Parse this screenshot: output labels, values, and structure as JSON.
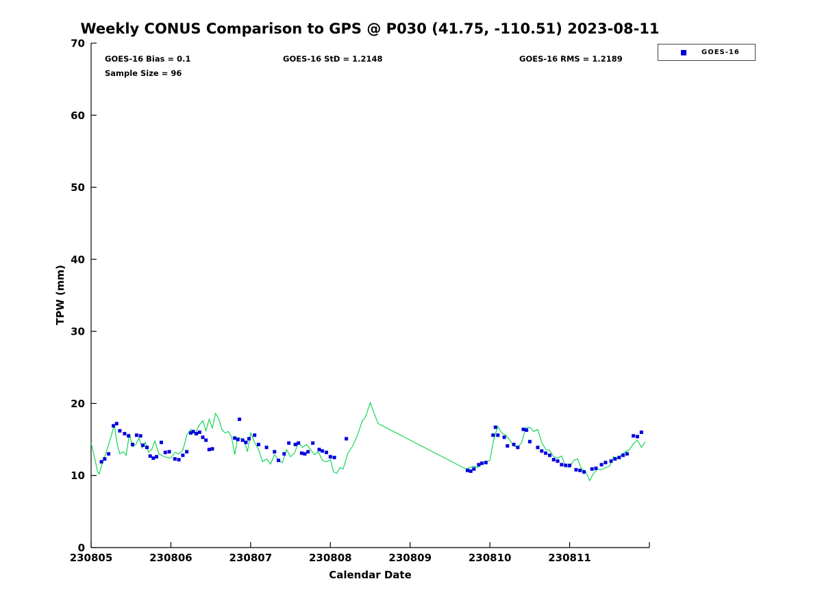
{
  "title": "Weekly CONUS Comparison to GPS @ P030 (41.75, -110.51) 2023-08-11",
  "stats": {
    "bias": "GOES-16 Bias = 0.1",
    "std": "GOES-16 StD = 1.2148",
    "rms": "GOES-16 RMS = 1.2189",
    "sample_size": "Sample Size = 96"
  },
  "legend": {
    "entries": [
      {
        "label": "GOES-16",
        "marker": "square",
        "color": "#0000dd"
      }
    ],
    "position": "top-right"
  },
  "chart_data": {
    "type": "line+scatter",
    "title": "Weekly CONUS Comparison to GPS @ P030 (41.75, -110.51) 2023-08-11",
    "xlabel": "Calendar Date",
    "ylabel": "TPW (mm)",
    "ylim": [
      0,
      70
    ],
    "yticks": [
      0,
      10,
      20,
      30,
      40,
      50,
      60,
      70
    ],
    "xlim_days": [
      0,
      7
    ],
    "xticks_days": [
      0,
      1,
      2,
      3,
      4,
      5,
      6
    ],
    "xtick_labels": [
      "230805",
      "230806",
      "230807",
      "230808",
      "230809",
      "230810",
      "230811"
    ],
    "grid": false,
    "axis_color": "#000000",
    "series": [
      {
        "name": "GPS",
        "type": "line",
        "color": "#00d24b",
        "points": [
          [
            0.0,
            14.5
          ],
          [
            0.04,
            12.6
          ],
          [
            0.08,
            10.6
          ],
          [
            0.1,
            10.2
          ],
          [
            0.15,
            12.0
          ],
          [
            0.2,
            13.6
          ],
          [
            0.25,
            15.4
          ],
          [
            0.29,
            17.0
          ],
          [
            0.33,
            14.2
          ],
          [
            0.36,
            13.0
          ],
          [
            0.4,
            13.3
          ],
          [
            0.44,
            12.8
          ],
          [
            0.48,
            15.8
          ],
          [
            0.52,
            14.0
          ],
          [
            0.56,
            14.3
          ],
          [
            0.6,
            15.2
          ],
          [
            0.64,
            13.8
          ],
          [
            0.68,
            14.6
          ],
          [
            0.72,
            13.2
          ],
          [
            0.76,
            13.6
          ],
          [
            0.8,
            14.8
          ],
          [
            0.85,
            13.0
          ],
          [
            0.9,
            12.7
          ],
          [
            0.95,
            12.5
          ],
          [
            1.0,
            12.4
          ],
          [
            1.05,
            13.2
          ],
          [
            1.1,
            13.0
          ],
          [
            1.15,
            13.5
          ],
          [
            1.2,
            15.6
          ],
          [
            1.25,
            16.4
          ],
          [
            1.3,
            15.7
          ],
          [
            1.35,
            16.9
          ],
          [
            1.4,
            17.6
          ],
          [
            1.44,
            16.2
          ],
          [
            1.48,
            17.8
          ],
          [
            1.52,
            16.6
          ],
          [
            1.56,
            18.6
          ],
          [
            1.6,
            17.9
          ],
          [
            1.64,
            16.4
          ],
          [
            1.68,
            15.9
          ],
          [
            1.72,
            16.1
          ],
          [
            1.76,
            15.4
          ],
          [
            1.8,
            12.9
          ],
          [
            1.84,
            15.3
          ],
          [
            1.88,
            15.1
          ],
          [
            1.92,
            14.9
          ],
          [
            1.96,
            13.3
          ],
          [
            2.0,
            15.9
          ],
          [
            2.05,
            14.6
          ],
          [
            2.1,
            13.6
          ],
          [
            2.15,
            11.9
          ],
          [
            2.2,
            12.3
          ],
          [
            2.25,
            11.6
          ],
          [
            2.3,
            12.9
          ],
          [
            2.35,
            12.1
          ],
          [
            2.4,
            11.8
          ],
          [
            2.45,
            13.6
          ],
          [
            2.5,
            12.6
          ],
          [
            2.55,
            13.1
          ],
          [
            2.6,
            14.6
          ],
          [
            2.65,
            13.9
          ],
          [
            2.7,
            14.3
          ],
          [
            2.75,
            13.6
          ],
          [
            2.8,
            12.9
          ],
          [
            2.85,
            13.3
          ],
          [
            2.9,
            12.1
          ],
          [
            2.95,
            11.9
          ],
          [
            3.0,
            12.2
          ],
          [
            3.04,
            10.5
          ],
          [
            3.08,
            10.3
          ],
          [
            3.12,
            11.1
          ],
          [
            3.16,
            10.9
          ],
          [
            3.22,
            13.1
          ],
          [
            3.28,
            14.1
          ],
          [
            3.34,
            15.6
          ],
          [
            3.4,
            17.6
          ],
          [
            3.44,
            18.1
          ],
          [
            3.5,
            20.1
          ],
          [
            3.55,
            18.6
          ],
          [
            3.6,
            17.2
          ],
          [
            4.7,
            10.9
          ],
          [
            4.75,
            11.1
          ],
          [
            4.8,
            11.3
          ],
          [
            4.85,
            11.1
          ],
          [
            4.9,
            11.6
          ],
          [
            4.95,
            11.9
          ],
          [
            5.0,
            12.1
          ],
          [
            5.05,
            15.1
          ],
          [
            5.1,
            16.8
          ],
          [
            5.15,
            15.9
          ],
          [
            5.2,
            15.6
          ],
          [
            5.25,
            14.9
          ],
          [
            5.3,
            14.1
          ],
          [
            5.35,
            13.9
          ],
          [
            5.4,
            14.6
          ],
          [
            5.45,
            16.6
          ],
          [
            5.5,
            16.7
          ],
          [
            5.55,
            16.1
          ],
          [
            5.6,
            16.4
          ],
          [
            5.65,
            14.6
          ],
          [
            5.7,
            13.6
          ],
          [
            5.75,
            13.5
          ],
          [
            5.8,
            12.6
          ],
          [
            5.85,
            12.4
          ],
          [
            5.9,
            12.7
          ],
          [
            5.95,
            11.3
          ],
          [
            6.0,
            11.1
          ],
          [
            6.05,
            12.1
          ],
          [
            6.1,
            12.3
          ],
          [
            6.15,
            10.9
          ],
          [
            6.2,
            10.6
          ],
          [
            6.25,
            9.3
          ],
          [
            6.3,
            10.3
          ],
          [
            6.35,
            10.9
          ],
          [
            6.4,
            10.8
          ],
          [
            6.45,
            11.1
          ],
          [
            6.5,
            11.3
          ],
          [
            6.55,
            12.6
          ],
          [
            6.6,
            12.4
          ],
          [
            6.65,
            12.9
          ],
          [
            6.7,
            13.3
          ],
          [
            6.75,
            13.6
          ],
          [
            6.8,
            14.4
          ],
          [
            6.85,
            14.9
          ],
          [
            6.9,
            13.9
          ],
          [
            6.95,
            14.7
          ]
        ]
      },
      {
        "name": "GOES-16",
        "type": "scatter",
        "marker": "square",
        "marker_size": 5,
        "color": "#0000dd",
        "points": [
          [
            0.13,
            11.9
          ],
          [
            0.17,
            12.3
          ],
          [
            0.22,
            13.0
          ],
          [
            0.28,
            16.9
          ],
          [
            0.32,
            17.2
          ],
          [
            0.36,
            16.2
          ],
          [
            0.42,
            15.8
          ],
          [
            0.47,
            15.5
          ],
          [
            0.52,
            14.3
          ],
          [
            0.57,
            15.6
          ],
          [
            0.62,
            15.5
          ],
          [
            0.65,
            14.2
          ],
          [
            0.7,
            13.9
          ],
          [
            0.74,
            12.7
          ],
          [
            0.78,
            12.4
          ],
          [
            0.82,
            12.6
          ],
          [
            0.88,
            14.6
          ],
          [
            0.93,
            13.2
          ],
          [
            0.98,
            13.3
          ],
          [
            1.05,
            12.3
          ],
          [
            1.1,
            12.2
          ],
          [
            1.15,
            12.8
          ],
          [
            1.2,
            13.3
          ],
          [
            1.25,
            15.9
          ],
          [
            1.28,
            16.1
          ],
          [
            1.32,
            15.8
          ],
          [
            1.36,
            16.0
          ],
          [
            1.4,
            15.3
          ],
          [
            1.44,
            14.9
          ],
          [
            1.48,
            13.6
          ],
          [
            1.52,
            13.7
          ],
          [
            1.8,
            15.2
          ],
          [
            1.84,
            15.0
          ],
          [
            1.86,
            17.8
          ],
          [
            1.9,
            14.9
          ],
          [
            1.94,
            14.6
          ],
          [
            1.98,
            15.1
          ],
          [
            2.05,
            15.6
          ],
          [
            2.1,
            14.3
          ],
          [
            2.2,
            13.9
          ],
          [
            2.3,
            13.3
          ],
          [
            2.35,
            12.1
          ],
          [
            2.42,
            13.0
          ],
          [
            2.48,
            14.5
          ],
          [
            2.56,
            14.3
          ],
          [
            2.6,
            14.5
          ],
          [
            2.64,
            13.1
          ],
          [
            2.68,
            13.0
          ],
          [
            2.72,
            13.3
          ],
          [
            2.78,
            14.5
          ],
          [
            2.86,
            13.6
          ],
          [
            2.9,
            13.4
          ],
          [
            2.95,
            13.2
          ],
          [
            3.0,
            12.6
          ],
          [
            3.05,
            12.5
          ],
          [
            3.2,
            15.1
          ],
          [
            4.72,
            10.7
          ],
          [
            4.76,
            10.6
          ],
          [
            4.8,
            10.9
          ],
          [
            4.86,
            11.5
          ],
          [
            4.9,
            11.7
          ],
          [
            4.95,
            11.8
          ],
          [
            5.04,
            15.6
          ],
          [
            5.07,
            16.7
          ],
          [
            5.1,
            15.6
          ],
          [
            5.18,
            15.3
          ],
          [
            5.22,
            14.1
          ],
          [
            5.3,
            14.3
          ],
          [
            5.35,
            13.9
          ],
          [
            5.42,
            16.4
          ],
          [
            5.46,
            16.3
          ],
          [
            5.5,
            14.7
          ],
          [
            5.6,
            13.9
          ],
          [
            5.65,
            13.4
          ],
          [
            5.7,
            13.1
          ],
          [
            5.75,
            12.8
          ],
          [
            5.8,
            12.2
          ],
          [
            5.85,
            12.0
          ],
          [
            5.9,
            11.5
          ],
          [
            5.95,
            11.4
          ],
          [
            6.0,
            11.4
          ],
          [
            6.08,
            10.8
          ],
          [
            6.13,
            10.7
          ],
          [
            6.18,
            10.5
          ],
          [
            6.28,
            10.9
          ],
          [
            6.33,
            11.0
          ],
          [
            6.4,
            11.5
          ],
          [
            6.45,
            11.8
          ],
          [
            6.52,
            12.0
          ],
          [
            6.57,
            12.3
          ],
          [
            6.62,
            12.5
          ],
          [
            6.67,
            12.8
          ],
          [
            6.72,
            13.0
          ],
          [
            6.8,
            15.5
          ],
          [
            6.85,
            15.4
          ],
          [
            6.9,
            16.0
          ]
        ]
      }
    ]
  }
}
